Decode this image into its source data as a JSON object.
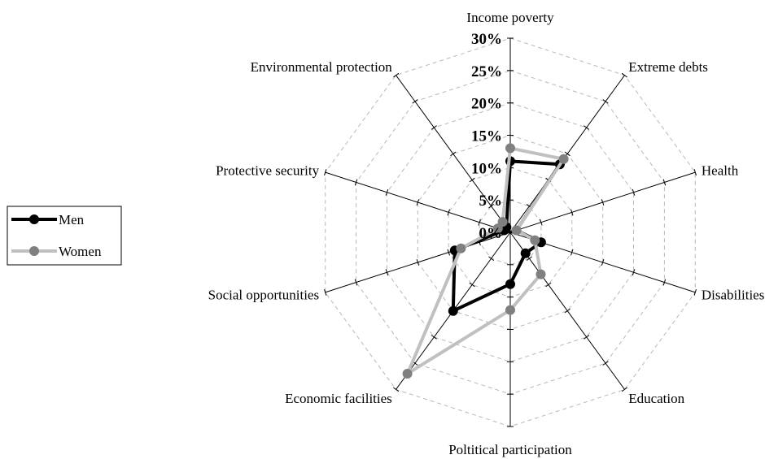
{
  "chart_data": {
    "type": "radar",
    "categories": [
      "Income poverty",
      "Extreme debts",
      "Health",
      "Disabilities",
      "Education",
      "Poltitical participation",
      "Economic facilities",
      "Social opportunities",
      "Protective security",
      "Environmental protection"
    ],
    "series": [
      {
        "name": "Men",
        "values": [
          11,
          13,
          1,
          5,
          4,
          8,
          15,
          9,
          1,
          1
        ],
        "color": "#000000"
      },
      {
        "name": "Women",
        "values": [
          13,
          14,
          1,
          4,
          8,
          12,
          27,
          8,
          2,
          2
        ],
        "color": "#c0c0c0"
      }
    ],
    "rlim": [
      0,
      30
    ],
    "ticks": [
      "0%",
      "5%",
      "10%",
      "15%",
      "20%",
      "25%",
      "30%"
    ],
    "tick_values": [
      0,
      5,
      10,
      15,
      20,
      25,
      30
    ],
    "grid": true,
    "legend_position": "left",
    "marker_colors": {
      "Men": "#000000",
      "Women": "#808080"
    }
  }
}
